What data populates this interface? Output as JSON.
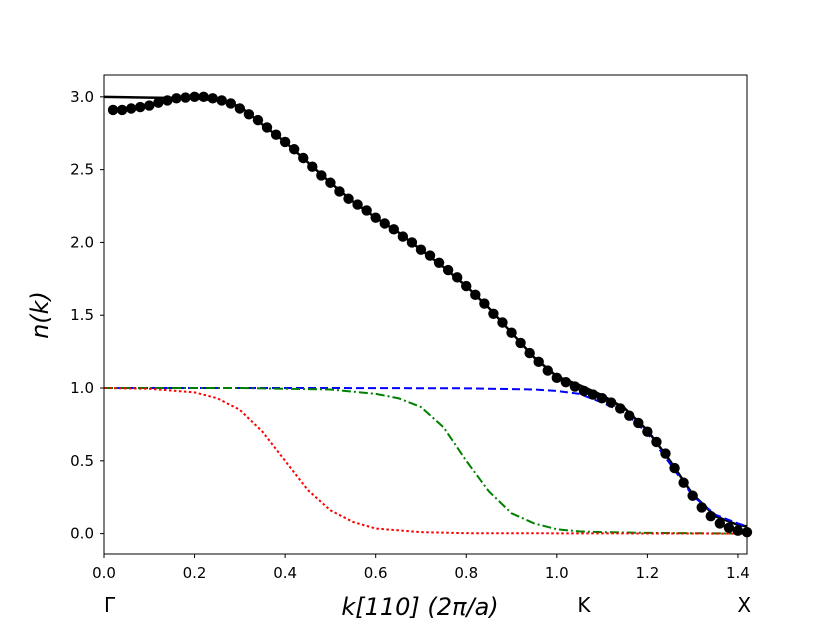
{
  "chart_data": {
    "type": "line",
    "xlabel": "k[110] (2π/a)",
    "ylabel": "n(k)",
    "xlim": [
      0.0,
      1.42
    ],
    "ylim": [
      -0.14,
      3.15
    ],
    "xticks": [
      "0.0",
      "0.2",
      "0.4",
      "0.6",
      "0.8",
      "1.0",
      "1.2",
      "1.4"
    ],
    "yticks": [
      "0.0",
      "0.5",
      "1.0",
      "1.5",
      "2.0",
      "2.5",
      "3.0"
    ],
    "symmetry_points": [
      {
        "label": "Γ",
        "k": 0.0
      },
      {
        "label": "K",
        "k": 1.06
      },
      {
        "label": "X",
        "k": 1.414
      }
    ],
    "grid": false,
    "legend": "none",
    "series": [
      {
        "style": "scatter",
        "color": "#000000",
        "points": [
          [
            0.02,
            2.91
          ],
          [
            0.04,
            2.91
          ],
          [
            0.06,
            2.92
          ],
          [
            0.08,
            2.93
          ],
          [
            0.1,
            2.94
          ],
          [
            0.12,
            2.96
          ],
          [
            0.14,
            2.975
          ],
          [
            0.16,
            2.99
          ],
          [
            0.18,
            2.995
          ],
          [
            0.2,
            3.0
          ],
          [
            0.22,
            3.0
          ],
          [
            0.24,
            2.99
          ],
          [
            0.26,
            2.975
          ],
          [
            0.28,
            2.955
          ],
          [
            0.3,
            2.92
          ],
          [
            0.32,
            2.88
          ],
          [
            0.34,
            2.84
          ],
          [
            0.36,
            2.79
          ],
          [
            0.38,
            2.74
          ],
          [
            0.4,
            2.69
          ],
          [
            0.42,
            2.64
          ],
          [
            0.44,
            2.58
          ],
          [
            0.46,
            2.52
          ],
          [
            0.48,
            2.46
          ],
          [
            0.5,
            2.41
          ],
          [
            0.52,
            2.35
          ],
          [
            0.54,
            2.3
          ],
          [
            0.56,
            2.26
          ],
          [
            0.58,
            2.22
          ],
          [
            0.6,
            2.17
          ],
          [
            0.62,
            2.13
          ],
          [
            0.64,
            2.09
          ],
          [
            0.66,
            2.04
          ],
          [
            0.68,
            2.0
          ],
          [
            0.7,
            1.95
          ],
          [
            0.72,
            1.91
          ],
          [
            0.74,
            1.86
          ],
          [
            0.76,
            1.81
          ],
          [
            0.78,
            1.76
          ],
          [
            0.8,
            1.7
          ],
          [
            0.82,
            1.64
          ],
          [
            0.84,
            1.58
          ],
          [
            0.86,
            1.51
          ],
          [
            0.88,
            1.45
          ],
          [
            0.9,
            1.38
          ],
          [
            0.92,
            1.31
          ],
          [
            0.94,
            1.24
          ],
          [
            0.96,
            1.18
          ],
          [
            0.98,
            1.12
          ],
          [
            1.0,
            1.07
          ],
          [
            1.02,
            1.04
          ],
          [
            1.04,
            1.01
          ],
          [
            1.06,
            0.98
          ],
          [
            1.08,
            0.955
          ],
          [
            1.1,
            0.93
          ],
          [
            1.12,
            0.9
          ],
          [
            1.14,
            0.86
          ],
          [
            1.16,
            0.81
          ],
          [
            1.18,
            0.76
          ],
          [
            1.2,
            0.7
          ],
          [
            1.22,
            0.63
          ],
          [
            1.24,
            0.55
          ],
          [
            1.26,
            0.45
          ],
          [
            1.28,
            0.35
          ],
          [
            1.3,
            0.26
          ],
          [
            1.32,
            0.18
          ],
          [
            1.34,
            0.12
          ],
          [
            1.36,
            0.07
          ],
          [
            1.38,
            0.04
          ],
          [
            1.4,
            0.02
          ],
          [
            1.42,
            0.01
          ]
        ]
      },
      {
        "style": "solid",
        "color": "#000000",
        "points": [
          [
            0.0,
            3.0
          ],
          [
            0.1,
            2.995
          ],
          [
            0.2,
            2.99
          ],
          [
            0.25,
            2.975
          ],
          [
            0.3,
            2.935
          ],
          [
            0.35,
            2.81
          ],
          [
            0.4,
            2.69
          ],
          [
            0.45,
            2.55
          ],
          [
            0.5,
            2.41
          ],
          [
            0.55,
            2.28
          ],
          [
            0.6,
            2.17
          ],
          [
            0.65,
            2.07
          ],
          [
            0.7,
            1.95
          ],
          [
            0.75,
            1.83
          ],
          [
            0.8,
            1.7
          ],
          [
            0.85,
            1.55
          ],
          [
            0.9,
            1.38
          ],
          [
            0.95,
            1.21
          ],
          [
            1.0,
            1.08
          ],
          [
            1.05,
            1.02
          ],
          [
            1.1,
            0.95
          ],
          [
            1.15,
            0.86
          ],
          [
            1.2,
            0.71
          ],
          [
            1.25,
            0.5
          ],
          [
            1.3,
            0.27
          ],
          [
            1.35,
            0.12
          ],
          [
            1.4,
            0.06
          ],
          [
            1.42,
            0.05
          ]
        ]
      },
      {
        "style": "dashed",
        "color": "#0000ff",
        "points": [
          [
            0.0,
            1.0
          ],
          [
            0.5,
            1.0
          ],
          [
            0.8,
            0.998
          ],
          [
            0.95,
            0.99
          ],
          [
            1.0,
            0.98
          ],
          [
            1.05,
            0.96
          ],
          [
            1.1,
            0.9
          ],
          [
            1.15,
            0.83
          ],
          [
            1.2,
            0.69
          ],
          [
            1.25,
            0.48
          ],
          [
            1.3,
            0.26
          ],
          [
            1.35,
            0.13
          ],
          [
            1.4,
            0.07
          ],
          [
            1.42,
            0.05
          ]
        ]
      },
      {
        "style": "dashdot",
        "color": "#008000",
        "points": [
          [
            0.0,
            1.0
          ],
          [
            0.3,
            1.0
          ],
          [
            0.5,
            0.99
          ],
          [
            0.6,
            0.96
          ],
          [
            0.65,
            0.93
          ],
          [
            0.7,
            0.87
          ],
          [
            0.75,
            0.73
          ],
          [
            0.8,
            0.5
          ],
          [
            0.85,
            0.29
          ],
          [
            0.9,
            0.14
          ],
          [
            0.95,
            0.07
          ],
          [
            1.0,
            0.03
          ],
          [
            1.05,
            0.015
          ],
          [
            1.1,
            0.01
          ],
          [
            1.2,
            0.005
          ],
          [
            1.42,
            0.0
          ]
        ]
      },
      {
        "style": "dotted",
        "color": "#ff0000",
        "points": [
          [
            0.0,
            1.0
          ],
          [
            0.1,
            0.995
          ],
          [
            0.2,
            0.97
          ],
          [
            0.25,
            0.93
          ],
          [
            0.3,
            0.85
          ],
          [
            0.35,
            0.7
          ],
          [
            0.4,
            0.5
          ],
          [
            0.45,
            0.3
          ],
          [
            0.5,
            0.16
          ],
          [
            0.55,
            0.08
          ],
          [
            0.6,
            0.035
          ],
          [
            0.7,
            0.01
          ],
          [
            0.8,
            0.003
          ],
          [
            1.42,
            0.0
          ]
        ]
      }
    ]
  }
}
